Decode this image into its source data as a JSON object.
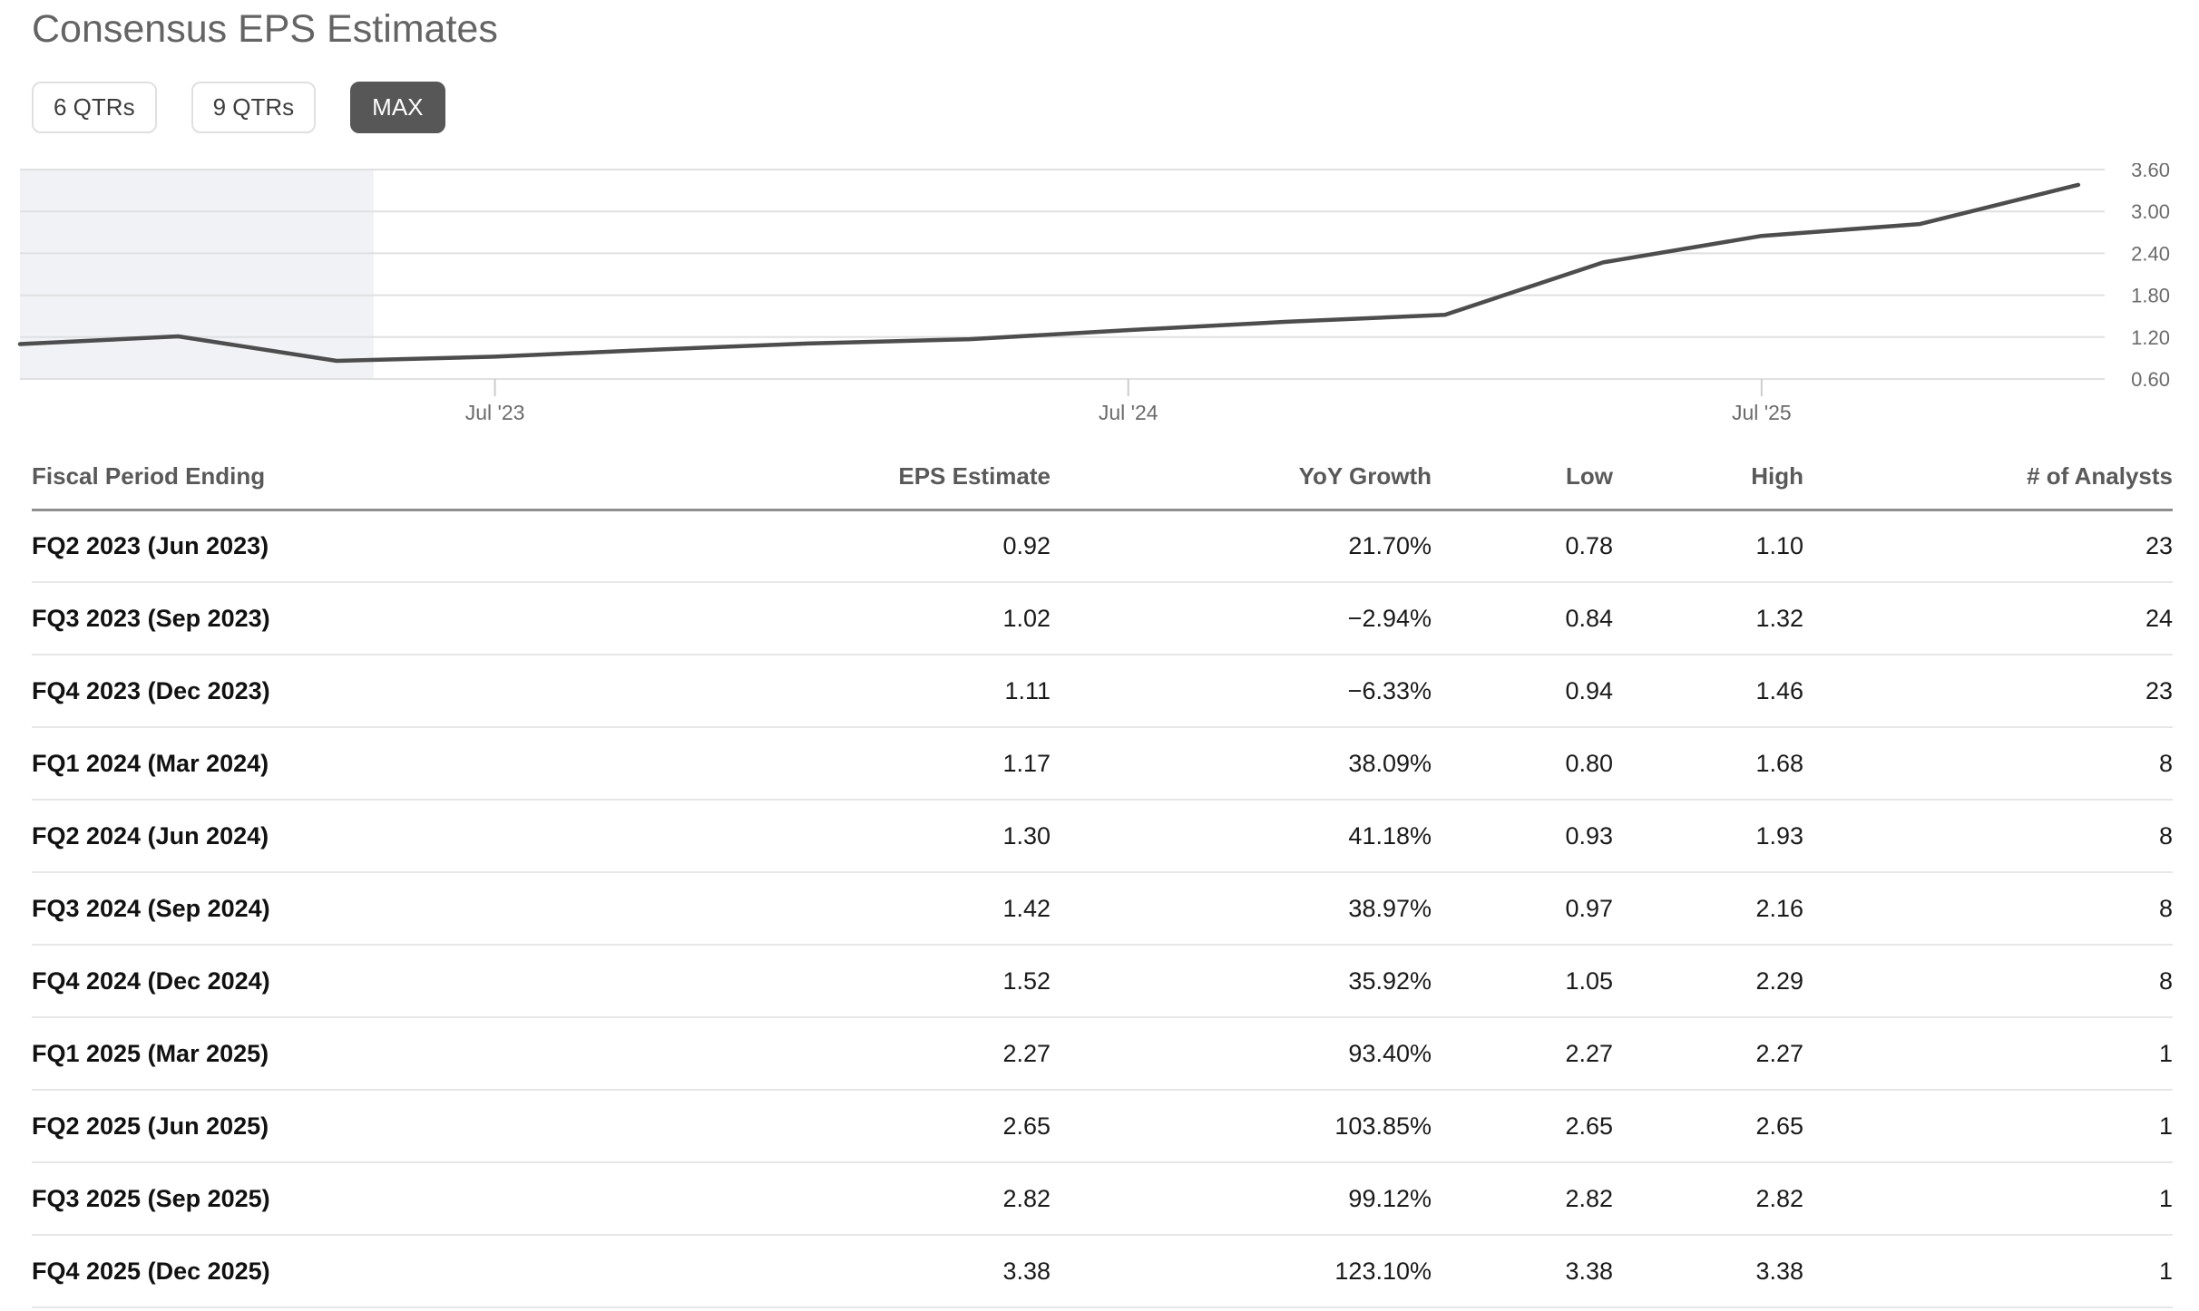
{
  "page": {
    "title": "Consensus EPS Estimates"
  },
  "range_buttons": [
    {
      "label": "6 QTRs",
      "active": false
    },
    {
      "label": "9 QTRs",
      "active": false
    },
    {
      "label": "MAX",
      "active": true
    }
  ],
  "chart_data": {
    "type": "line",
    "title": "Consensus EPS Estimates (MAX range)",
    "xlabel": "",
    "ylabel": "EPS",
    "ylim": [
      0.6,
      3.6
    ],
    "y_gridlines": [
      3.6,
      3.0,
      2.4,
      1.8,
      1.2,
      0.6
    ],
    "y_tick_labels": [
      "3.60",
      "3.00",
      "2.40",
      "1.80",
      "1.20",
      "0.60"
    ],
    "x_tick_labels": [
      "Jul '23",
      "Jul '24",
      "Jul '25"
    ],
    "x_ticks_months": [
      9.5,
      21.5,
      33.5
    ],
    "x_domain_months": [
      0.5,
      40.0
    ],
    "shaded_past_region_months": [
      0.5,
      7.2
    ],
    "grid": true,
    "legend": "none",
    "colors": {
      "line": "#4d4d4d",
      "shaded_region": "#f1f2f6",
      "gridline": "#e0e0e0",
      "axis_text": "#6b6b6b"
    },
    "points": [
      {
        "period": "Sep 2022",
        "m": 0.5,
        "value": 1.1
      },
      {
        "period": "Dec 2022",
        "m": 3.5,
        "value": 1.21
      },
      {
        "period": "Mar 2023",
        "m": 6.5,
        "value": 0.86
      },
      {
        "period": "Jun 2023",
        "m": 9.5,
        "value": 0.92
      },
      {
        "period": "Sep 2023",
        "m": 12.5,
        "value": 1.02
      },
      {
        "period": "Dec 2023",
        "m": 15.5,
        "value": 1.11
      },
      {
        "period": "Mar 2024",
        "m": 18.5,
        "value": 1.17
      },
      {
        "period": "Jun 2024",
        "m": 21.5,
        "value": 1.3
      },
      {
        "period": "Sep 2024",
        "m": 24.5,
        "value": 1.42
      },
      {
        "period": "Dec 2024",
        "m": 27.5,
        "value": 1.52
      },
      {
        "period": "Mar 2025",
        "m": 30.5,
        "value": 2.27
      },
      {
        "period": "Jun 2025",
        "m": 33.5,
        "value": 2.65
      },
      {
        "period": "Sep 2025",
        "m": 36.5,
        "value": 2.82
      },
      {
        "period": "Dec 2025",
        "m": 39.5,
        "value": 3.38
      }
    ]
  },
  "table": {
    "columns": [
      "Fiscal Period Ending",
      "EPS Estimate",
      "YoY Growth",
      "Low",
      "High",
      "# of Analysts"
    ],
    "rows": [
      [
        "FQ2 2023 (Jun 2023)",
        "0.92",
        "21.70%",
        "0.78",
        "1.10",
        "23"
      ],
      [
        "FQ3 2023 (Sep 2023)",
        "1.02",
        "−2.94%",
        "0.84",
        "1.32",
        "24"
      ],
      [
        "FQ4 2023 (Dec 2023)",
        "1.11",
        "−6.33%",
        "0.94",
        "1.46",
        "23"
      ],
      [
        "FQ1 2024 (Mar 2024)",
        "1.17",
        "38.09%",
        "0.80",
        "1.68",
        "8"
      ],
      [
        "FQ2 2024 (Jun 2024)",
        "1.30",
        "41.18%",
        "0.93",
        "1.93",
        "8"
      ],
      [
        "FQ3 2024 (Sep 2024)",
        "1.42",
        "38.97%",
        "0.97",
        "2.16",
        "8"
      ],
      [
        "FQ4 2024 (Dec 2024)",
        "1.52",
        "35.92%",
        "1.05",
        "2.29",
        "8"
      ],
      [
        "FQ1 2025 (Mar 2025)",
        "2.27",
        "93.40%",
        "2.27",
        "2.27",
        "1"
      ],
      [
        "FQ2 2025 (Jun 2025)",
        "2.65",
        "103.85%",
        "2.65",
        "2.65",
        "1"
      ],
      [
        "FQ3 2025 (Sep 2025)",
        "2.82",
        "99.12%",
        "2.82",
        "2.82",
        "1"
      ],
      [
        "FQ4 2025 (Dec 2025)",
        "3.38",
        "123.10%",
        "3.38",
        "3.38",
        "1"
      ]
    ]
  }
}
